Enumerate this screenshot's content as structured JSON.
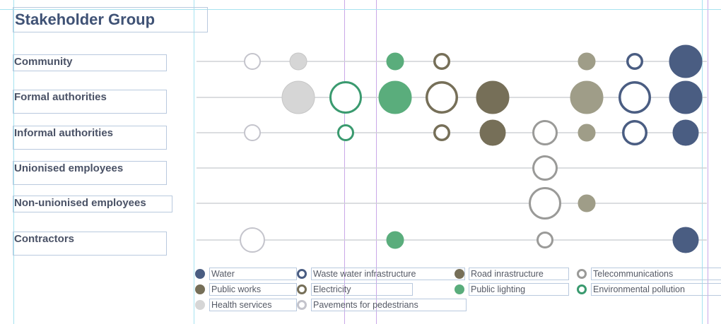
{
  "title": "Stakeholder Group",
  "colors": {
    "water": "#4a5d82",
    "road": "#766f58",
    "green": "#5aad7c",
    "teal": "#3a9a6f",
    "grey_outline": "#9a9a98",
    "light_grey": "#d6d6d6",
    "olive_grey": "#9f9d88",
    "row_line": "#cfd2d6"
  },
  "rows": [
    {
      "label": "Community"
    },
    {
      "label": "Formal authorities"
    },
    {
      "label": "Informal authorities"
    },
    {
      "label": "Unionised employees"
    },
    {
      "label": "Non-unionised employees"
    },
    {
      "label": "Contractors"
    }
  ],
  "columns": [
    "Pavements for pedestrians",
    "Health services",
    "Environmental pollution",
    "Public lighting",
    "Electricity",
    "Public works",
    "Telecommunications",
    "Road inrastructure",
    "Waste water infrastructure",
    "Water"
  ],
  "chart_data": {
    "type": "matrix",
    "rows": [
      "Community",
      "Formal authorities",
      "Informal authorities",
      "Unionised employees",
      "Non-unionised employees",
      "Contractors"
    ],
    "columns": [
      "Pavements for pedestrians",
      "Health services",
      "Environmental pollution",
      "Public lighting",
      "Electricity",
      "Public works",
      "Telecommunications",
      "Road inrastructure",
      "Waste water infrastructure",
      "Water"
    ],
    "size_scale": [
      1,
      2,
      3
    ],
    "cells": [
      {
        "row": "Community",
        "column": "Pavements for pedestrians",
        "size": 1
      },
      {
        "row": "Community",
        "column": "Health services",
        "size": 1
      },
      {
        "row": "Community",
        "column": "Public lighting",
        "size": 1
      },
      {
        "row": "Community",
        "column": "Electricity",
        "size": 1
      },
      {
        "row": "Community",
        "column": "Road inrastructure",
        "size": 1
      },
      {
        "row": "Community",
        "column": "Waste water infrastructure",
        "size": 1
      },
      {
        "row": "Community",
        "column": "Water",
        "size": 3
      },
      {
        "row": "Formal authorities",
        "column": "Health services",
        "size": 3
      },
      {
        "row": "Formal authorities",
        "column": "Environmental pollution",
        "size": 3
      },
      {
        "row": "Formal authorities",
        "column": "Public lighting",
        "size": 3
      },
      {
        "row": "Formal authorities",
        "column": "Electricity",
        "size": 3
      },
      {
        "row": "Formal authorities",
        "column": "Public works",
        "size": 3
      },
      {
        "row": "Formal authorities",
        "column": "Road inrastructure",
        "size": 3
      },
      {
        "row": "Formal authorities",
        "column": "Waste water infrastructure",
        "size": 3
      },
      {
        "row": "Formal authorities",
        "column": "Water",
        "size": 3
      },
      {
        "row": "Informal authorities",
        "column": "Pavements for pedestrians",
        "size": 1
      },
      {
        "row": "Informal authorities",
        "column": "Environmental pollution",
        "size": 1
      },
      {
        "row": "Informal authorities",
        "column": "Electricity",
        "size": 1
      },
      {
        "row": "Informal authorities",
        "column": "Public works",
        "size": 2
      },
      {
        "row": "Informal authorities",
        "column": "Telecommunications",
        "size": 2
      },
      {
        "row": "Informal authorities",
        "column": "Road inrastructure",
        "size": 1
      },
      {
        "row": "Informal authorities",
        "column": "Waste water infrastructure",
        "size": 2
      },
      {
        "row": "Informal authorities",
        "column": "Water",
        "size": 2
      },
      {
        "row": "Unionised employees",
        "column": "Telecommunications",
        "size": 2
      },
      {
        "row": "Non-unionised employees",
        "column": "Telecommunications",
        "size": 3
      },
      {
        "row": "Non-unionised employees",
        "column": "Road inrastructure",
        "size": 1
      },
      {
        "row": "Contractors",
        "column": "Pavements for pedestrians",
        "size": 2
      },
      {
        "row": "Contractors",
        "column": "Public lighting",
        "size": 1
      },
      {
        "row": "Contractors",
        "column": "Telecommunications",
        "size": 1
      },
      {
        "row": "Contractors",
        "column": "Water",
        "size": 2
      }
    ]
  },
  "legend": [
    {
      "label": "Water",
      "style": "filled",
      "color": "#4a5d82"
    },
    {
      "label": "Waste water infrastructure",
      "style": "outline",
      "color": "#4a5d82"
    },
    {
      "label": "Road inrastructure",
      "style": "filled",
      "color": "#766f58"
    },
    {
      "label": "Telecommunications",
      "style": "outline",
      "color": "#9a9a98"
    },
    {
      "label": "Public works",
      "style": "filled",
      "color": "#766f58"
    },
    {
      "label": "Electricity",
      "style": "outline",
      "color": "#766f58"
    },
    {
      "label": "Public lighting",
      "style": "filled",
      "color": "#5aad7c"
    },
    {
      "label": "Environmental pollution",
      "style": "outline",
      "color": "#3a9a6f"
    },
    {
      "label": "Health services",
      "style": "filled",
      "color": "#d6d6d6"
    },
    {
      "label": "Pavements for pedestrians",
      "style": "outline",
      "color": "#c4c4cc"
    }
  ]
}
